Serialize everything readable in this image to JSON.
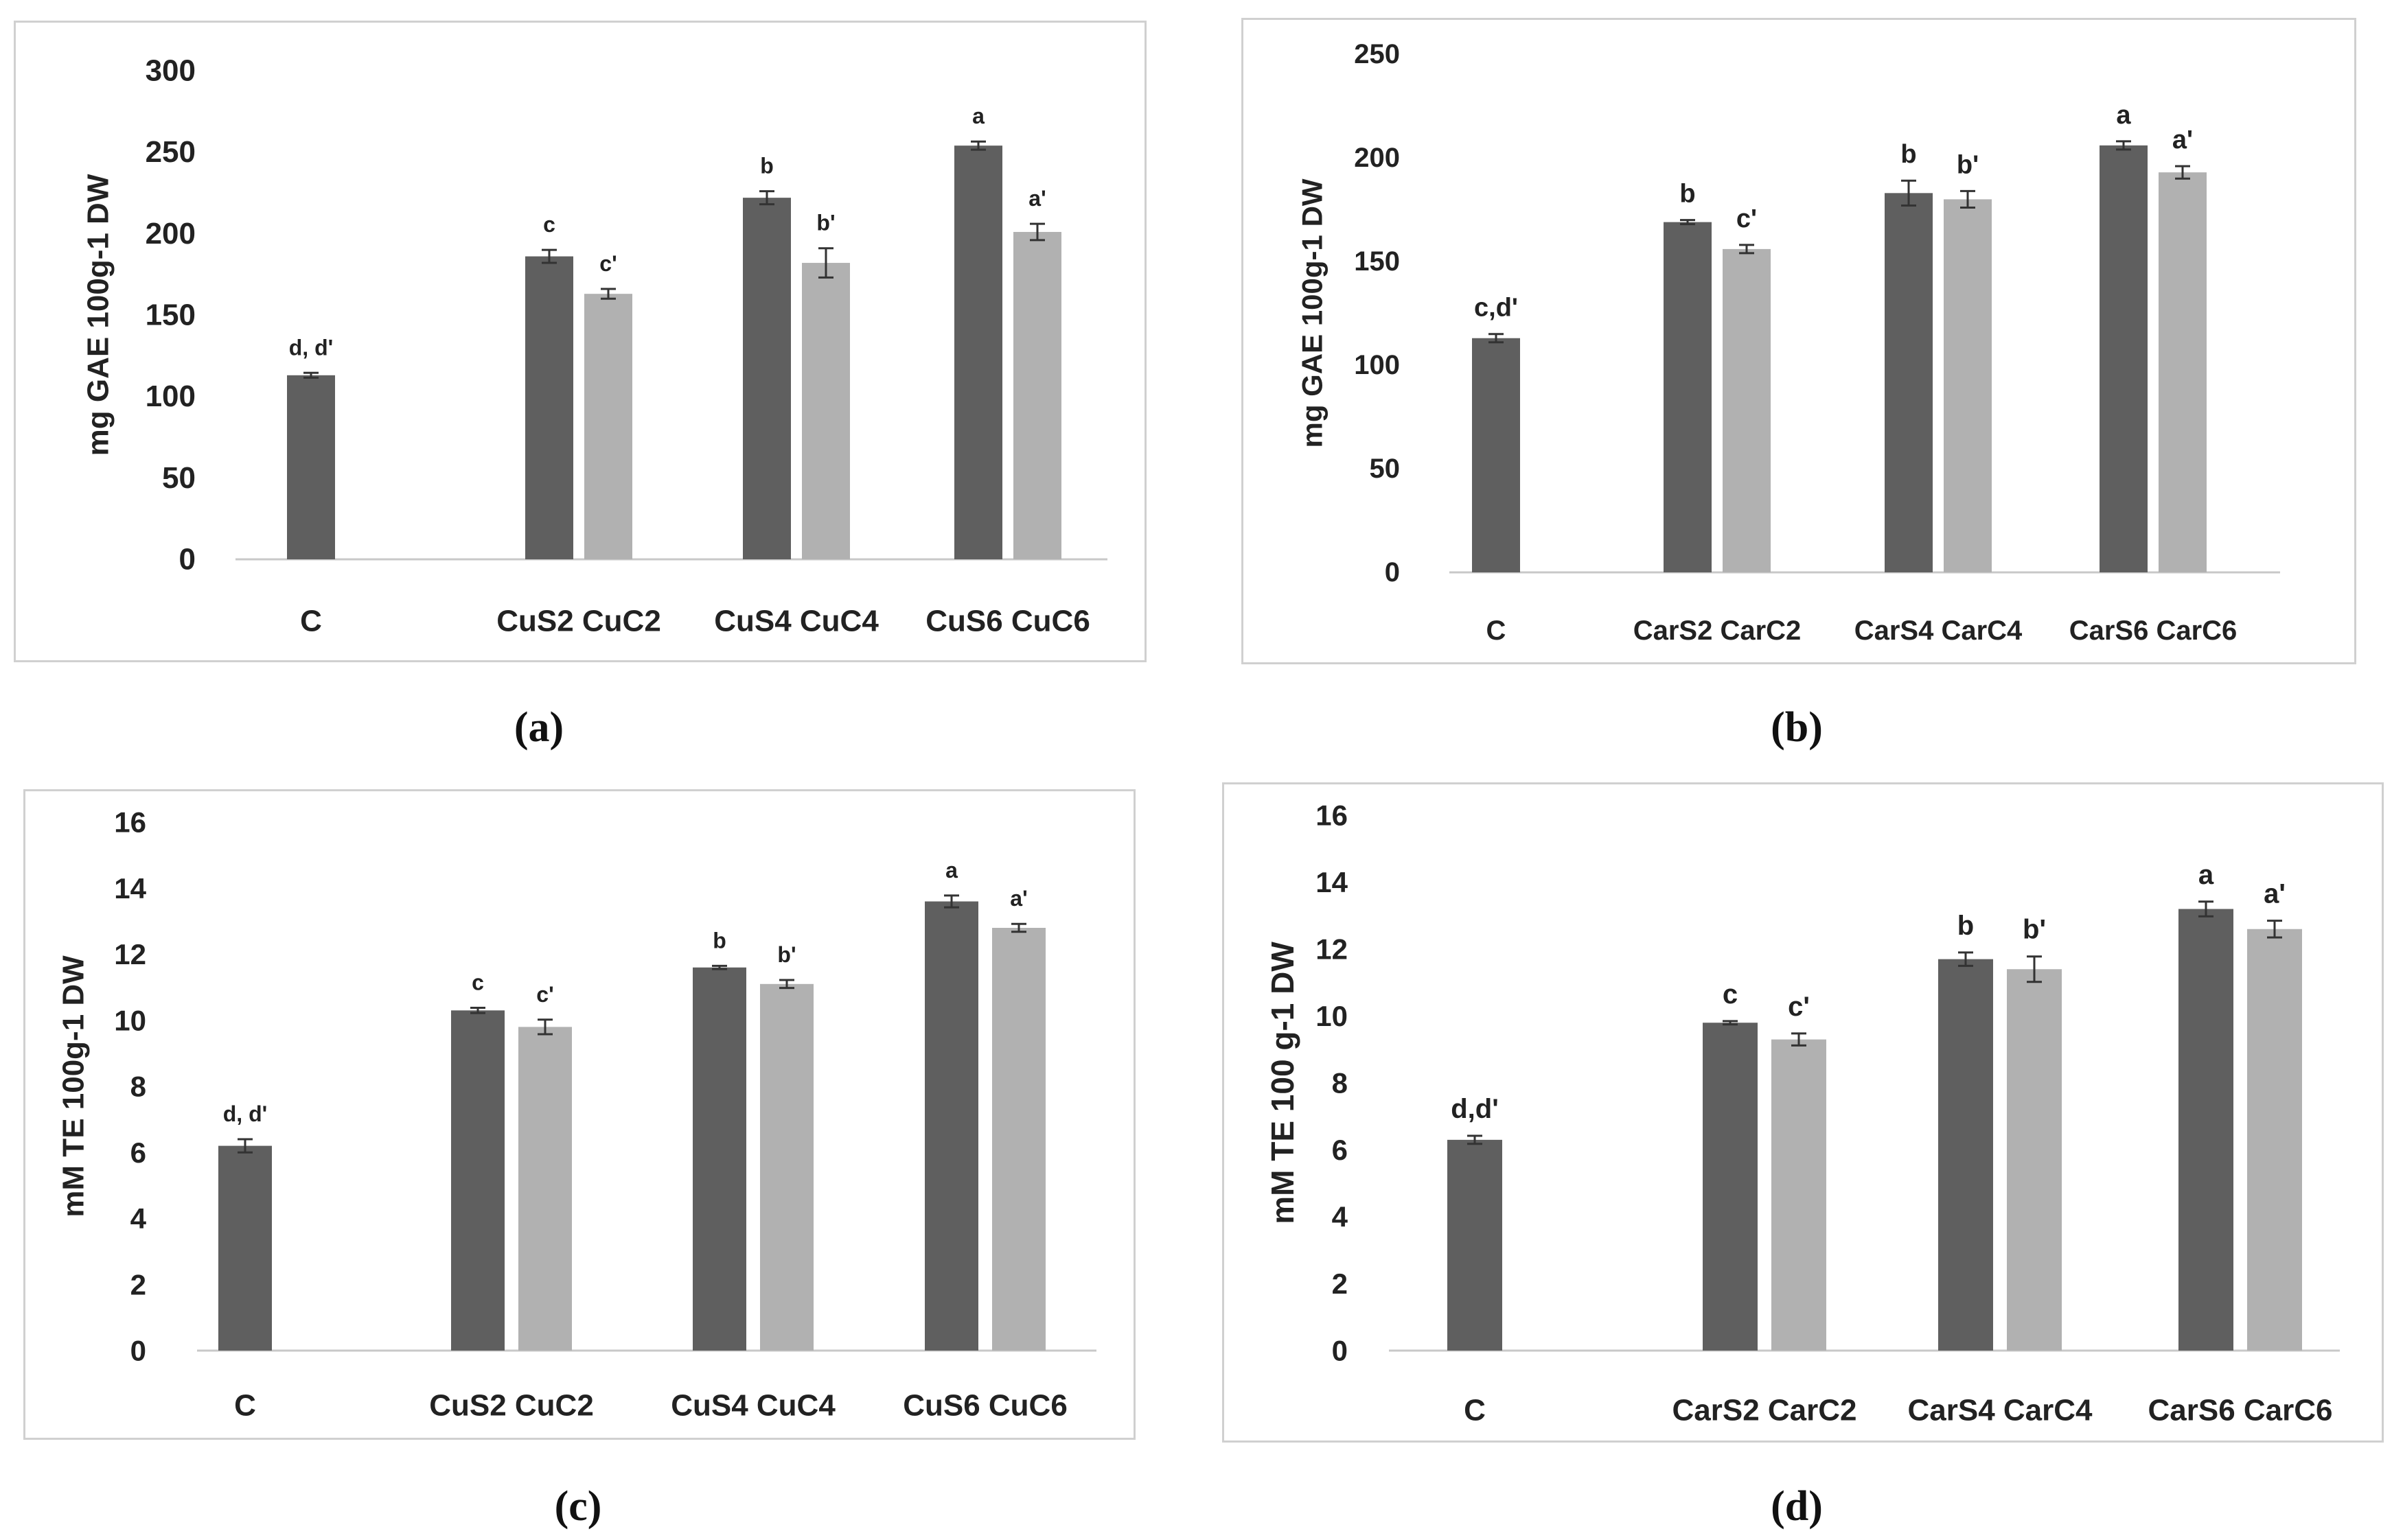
{
  "figure": {
    "captions": [
      "(a)",
      "(b)",
      "(c)",
      "(d)"
    ]
  },
  "colors": {
    "dark_bar": "#5f5f5f",
    "light_bar": "#b1b1b1",
    "axis": "#c8c8c8",
    "text": "#222222"
  },
  "chart_data": [
    {
      "id": "a",
      "type": "bar",
      "ylabel": "mg GAE 100g-1 DW",
      "ylim": [
        0,
        300
      ],
      "yticks": [
        0,
        50,
        100,
        150,
        200,
        250,
        300
      ],
      "categories": [
        "C",
        "CuS2 CuC2",
        "CuS4 CuC4",
        "CuS6 CuC6"
      ],
      "bars": [
        {
          "category": 0,
          "series": "dark",
          "value": 113,
          "error": 1.5,
          "label": "d, d'"
        },
        {
          "category": 1,
          "series": "dark",
          "value": 186,
          "error": 4,
          "label": "c"
        },
        {
          "category": 1,
          "series": "light",
          "value": 163,
          "error": 3,
          "label": "c'"
        },
        {
          "category": 2,
          "series": "dark",
          "value": 222,
          "error": 4,
          "label": "b"
        },
        {
          "category": 2,
          "series": "light",
          "value": 182,
          "error": 9,
          "label": "b'"
        },
        {
          "category": 3,
          "series": "dark",
          "value": 254,
          "error": 2.5,
          "label": "a"
        },
        {
          "category": 3,
          "series": "light",
          "value": 201,
          "error": 5,
          "label": "a'"
        }
      ]
    },
    {
      "id": "b",
      "type": "bar",
      "ylabel": "mg GAE 100g-1 DW",
      "ylim": [
        0,
        250
      ],
      "yticks": [
        0,
        50,
        100,
        150,
        200,
        250
      ],
      "categories": [
        "C",
        "CarS2 CarC2",
        "CarS4 CarC4",
        "CarS6 CarC6"
      ],
      "bars": [
        {
          "category": 0,
          "series": "dark",
          "value": 113,
          "error": 2,
          "label": "c,d'"
        },
        {
          "category": 1,
          "series": "dark",
          "value": 169,
          "error": 1,
          "label": "b"
        },
        {
          "category": 1,
          "series": "light",
          "value": 156,
          "error": 2,
          "label": "c'"
        },
        {
          "category": 2,
          "series": "dark",
          "value": 183,
          "error": 6,
          "label": "b"
        },
        {
          "category": 2,
          "series": "light",
          "value": 180,
          "error": 4,
          "label": "b'"
        },
        {
          "category": 3,
          "series": "dark",
          "value": 206,
          "error": 2,
          "label": "a"
        },
        {
          "category": 3,
          "series": "light",
          "value": 193,
          "error": 3,
          "label": "a'"
        }
      ]
    },
    {
      "id": "c",
      "type": "bar",
      "ylabel": "mM TE 100g-1 DW",
      "ylim": [
        0,
        16
      ],
      "yticks": [
        0,
        2,
        4,
        6,
        8,
        10,
        12,
        14,
        16
      ],
      "categories": [
        "C",
        "CuS2 CuC2",
        "CuS4 CuC4",
        "CuS6 CuC6"
      ],
      "bars": [
        {
          "category": 0,
          "series": "dark",
          "value": 6.2,
          "error": 0.2,
          "label": "d, d'"
        },
        {
          "category": 1,
          "series": "dark",
          "value": 10.3,
          "error": 0.08,
          "label": "c"
        },
        {
          "category": 1,
          "series": "light",
          "value": 9.8,
          "error": 0.22,
          "label": "c'"
        },
        {
          "category": 2,
          "series": "dark",
          "value": 11.6,
          "error": 0.05,
          "label": "b"
        },
        {
          "category": 2,
          "series": "light",
          "value": 11.1,
          "error": 0.12,
          "label": "b'"
        },
        {
          "category": 3,
          "series": "dark",
          "value": 13.6,
          "error": 0.18,
          "label": "a"
        },
        {
          "category": 3,
          "series": "light",
          "value": 12.8,
          "error": 0.12,
          "label": "a'"
        }
      ]
    },
    {
      "id": "d",
      "type": "bar",
      "ylabel": "mM TE 100 g-1 DW",
      "ylim": [
        0,
        16
      ],
      "yticks": [
        0,
        2,
        4,
        6,
        8,
        10,
        12,
        14,
        16
      ],
      "categories": [
        "C",
        "CarS2 CarC2",
        "CarS4 CarC4",
        "CarS6 CarC6"
      ],
      "bars": [
        {
          "category": 0,
          "series": "dark",
          "value": 6.3,
          "error": 0.12,
          "label": "d,d'"
        },
        {
          "category": 1,
          "series": "dark",
          "value": 9.8,
          "error": 0.05,
          "label": "c"
        },
        {
          "category": 1,
          "series": "light",
          "value": 9.3,
          "error": 0.18,
          "label": "c'"
        },
        {
          "category": 2,
          "series": "dark",
          "value": 11.7,
          "error": 0.2,
          "label": "b"
        },
        {
          "category": 2,
          "series": "light",
          "value": 11.4,
          "error": 0.38,
          "label": "b'"
        },
        {
          "category": 3,
          "series": "dark",
          "value": 13.2,
          "error": 0.22,
          "label": "a"
        },
        {
          "category": 3,
          "series": "light",
          "value": 12.6,
          "error": 0.25,
          "label": "a'"
        }
      ]
    }
  ]
}
